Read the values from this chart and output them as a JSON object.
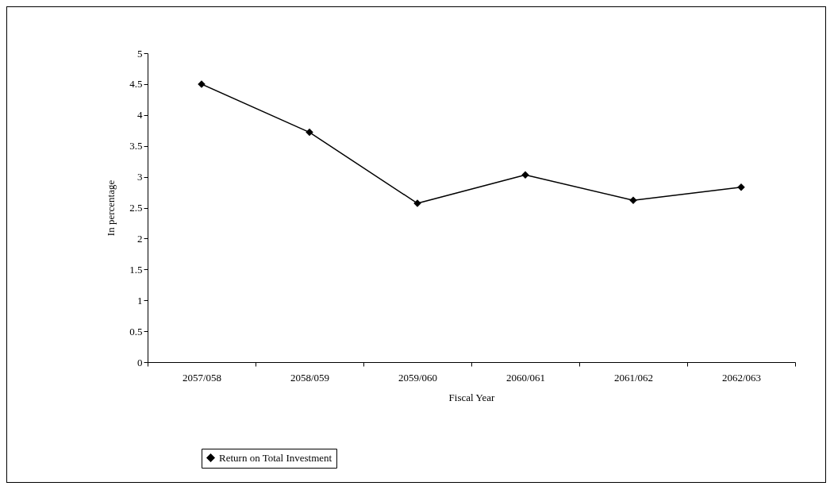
{
  "chart_data": {
    "type": "line",
    "xlabel": "Fiscal Year",
    "ylabel": "In percentage",
    "categories": [
      "2057/058",
      "2058/059",
      "2059/060",
      "2060/061",
      "2061/062",
      "2062/063"
    ],
    "series": [
      {
        "name": "Return on Total Investment",
        "color": "#000000",
        "values": [
          4.5,
          3.72,
          2.57,
          3.03,
          2.62,
          2.83
        ]
      }
    ],
    "ylim": [
      0,
      5
    ],
    "yticks": [
      0,
      0.5,
      1,
      1.5,
      2,
      2.5,
      3,
      3.5,
      4,
      4.5,
      5
    ],
    "grid": false,
    "legend": "bottom",
    "marker": "diamond",
    "line_style": "solid"
  }
}
